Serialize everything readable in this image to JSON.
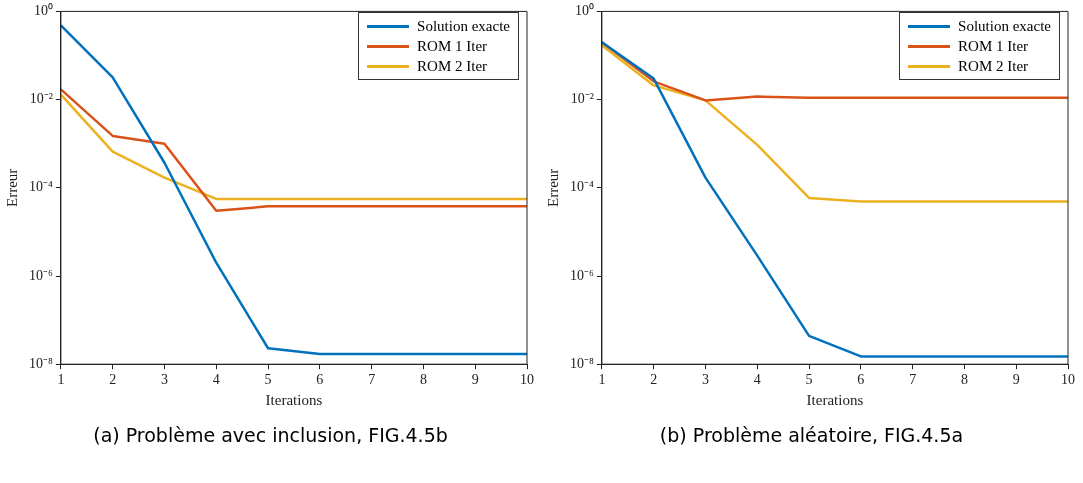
{
  "chart_data": [
    {
      "type": "line",
      "xlabel": "Iterations",
      "ylabel": "Erreur",
      "x": [
        1,
        2,
        3,
        4,
        5,
        6,
        7,
        8,
        9,
        10
      ],
      "log": "y",
      "xlim": [
        1,
        10
      ],
      "xticks": [
        1,
        2,
        3,
        4,
        5,
        6,
        7,
        8,
        9,
        10
      ],
      "ylim": [
        1e-08,
        1
      ],
      "yticks": [
        {
          "value": 1e-08,
          "label": "10⁻⁸"
        },
        {
          "value": 1e-06,
          "label": "10⁻⁶"
        },
        {
          "value": 0.0001,
          "label": "10⁻⁴"
        },
        {
          "value": 0.01,
          "label": "10⁻²"
        },
        {
          "value": 1,
          "label": "10⁰"
        }
      ],
      "legend": "top right",
      "marker": "none",
      "line_style": "solid",
      "annotations": [
        "(a) Problème avec inclusion, FIG.4.5b"
      ],
      "series": [
        {
          "name": "Solution exacte",
          "color": "#0072bd",
          "values": [
            0.48,
            0.032,
            0.00037,
            2e-06,
            2.3e-08,
            1.7e-08,
            1.7e-08,
            1.7e-08,
            1.7e-08,
            1.7e-08
          ]
        },
        {
          "name": "ROM 1 Iter",
          "color": "#d95319",
          "values": [
            0.017,
            0.0015,
            0.001,
            3e-05,
            3.8e-05,
            3.8e-05,
            3.8e-05,
            3.8e-05,
            3.8e-05,
            3.8e-05
          ]
        },
        {
          "name": "ROM 2 Iter",
          "color": "#edb120",
          "values": [
            0.013,
            0.00066,
            0.00017,
            5.6e-05,
            5.6e-05,
            5.6e-05,
            5.6e-05,
            5.6e-05,
            5.6e-05,
            5.6e-05
          ]
        }
      ]
    },
    {
      "type": "line",
      "xlabel": "Iterations",
      "ylabel": "Erreur",
      "x": [
        1,
        2,
        3,
        4,
        5,
        6,
        7,
        8,
        9,
        10
      ],
      "log": "y",
      "xlim": [
        1,
        10
      ],
      "xticks": [
        1,
        2,
        3,
        4,
        5,
        6,
        7,
        8,
        9,
        10
      ],
      "ylim": [
        1e-08,
        1
      ],
      "yticks": [
        {
          "value": 1e-08,
          "label": "10⁻⁸"
        },
        {
          "value": 1e-06,
          "label": "10⁻⁶"
        },
        {
          "value": 0.0001,
          "label": "10⁻⁴"
        },
        {
          "value": 0.01,
          "label": "10⁻²"
        },
        {
          "value": 1,
          "label": "10⁰"
        }
      ],
      "legend": "top right",
      "marker": "none",
      "line_style": "solid",
      "annotations": [
        "(b) Problème aléatoire, FIG.4.5a"
      ],
      "series": [
        {
          "name": "Solution exacte",
          "color": "#0072bd",
          "values": [
            0.2,
            0.03,
            0.00017,
            2.9e-06,
            4.4e-08,
            1.5e-08,
            1.5e-08,
            1.5e-08,
            1.5e-08,
            1.5e-08
          ]
        },
        {
          "name": "ROM 1 Iter",
          "color": "#d95319",
          "values": [
            0.2,
            0.026,
            0.0096,
            0.0117,
            0.011,
            0.011,
            0.011,
            0.011,
            0.011,
            0.011
          ]
        },
        {
          "name": "ROM 2 Iter",
          "color": "#edb120",
          "values": [
            0.17,
            0.021,
            0.0096,
            0.00094,
            5.9e-05,
            4.9e-05,
            4.9e-05,
            4.9e-05,
            4.9e-05,
            4.9e-05
          ]
        }
      ]
    }
  ]
}
